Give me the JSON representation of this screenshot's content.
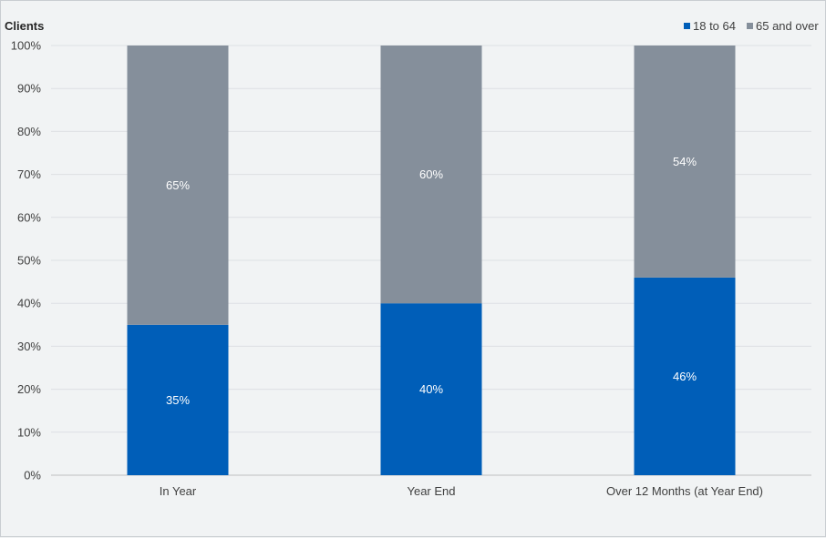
{
  "chart_data": {
    "type": "bar",
    "stacked": true,
    "ylabel": "Clients",
    "categories": [
      "In Year",
      "Year End",
      "Over 12 Months (at Year End)"
    ],
    "series": [
      {
        "name": "18 to 64",
        "values": [
          35,
          40,
          46
        ],
        "labels": [
          "35%",
          "40%",
          "46%"
        ],
        "color": "#005eb8"
      },
      {
        "name": "65 and over",
        "values": [
          65,
          60,
          54
        ],
        "labels": [
          "65%",
          "60%",
          "54%"
        ],
        "color": "#858f9b"
      }
    ],
    "ylim": [
      0,
      100
    ],
    "yticks": [
      "0%",
      "10%",
      "20%",
      "30%",
      "40%",
      "50%",
      "60%",
      "70%",
      "80%",
      "90%",
      "100%"
    ],
    "grid": true,
    "legend_position": "top-right"
  }
}
